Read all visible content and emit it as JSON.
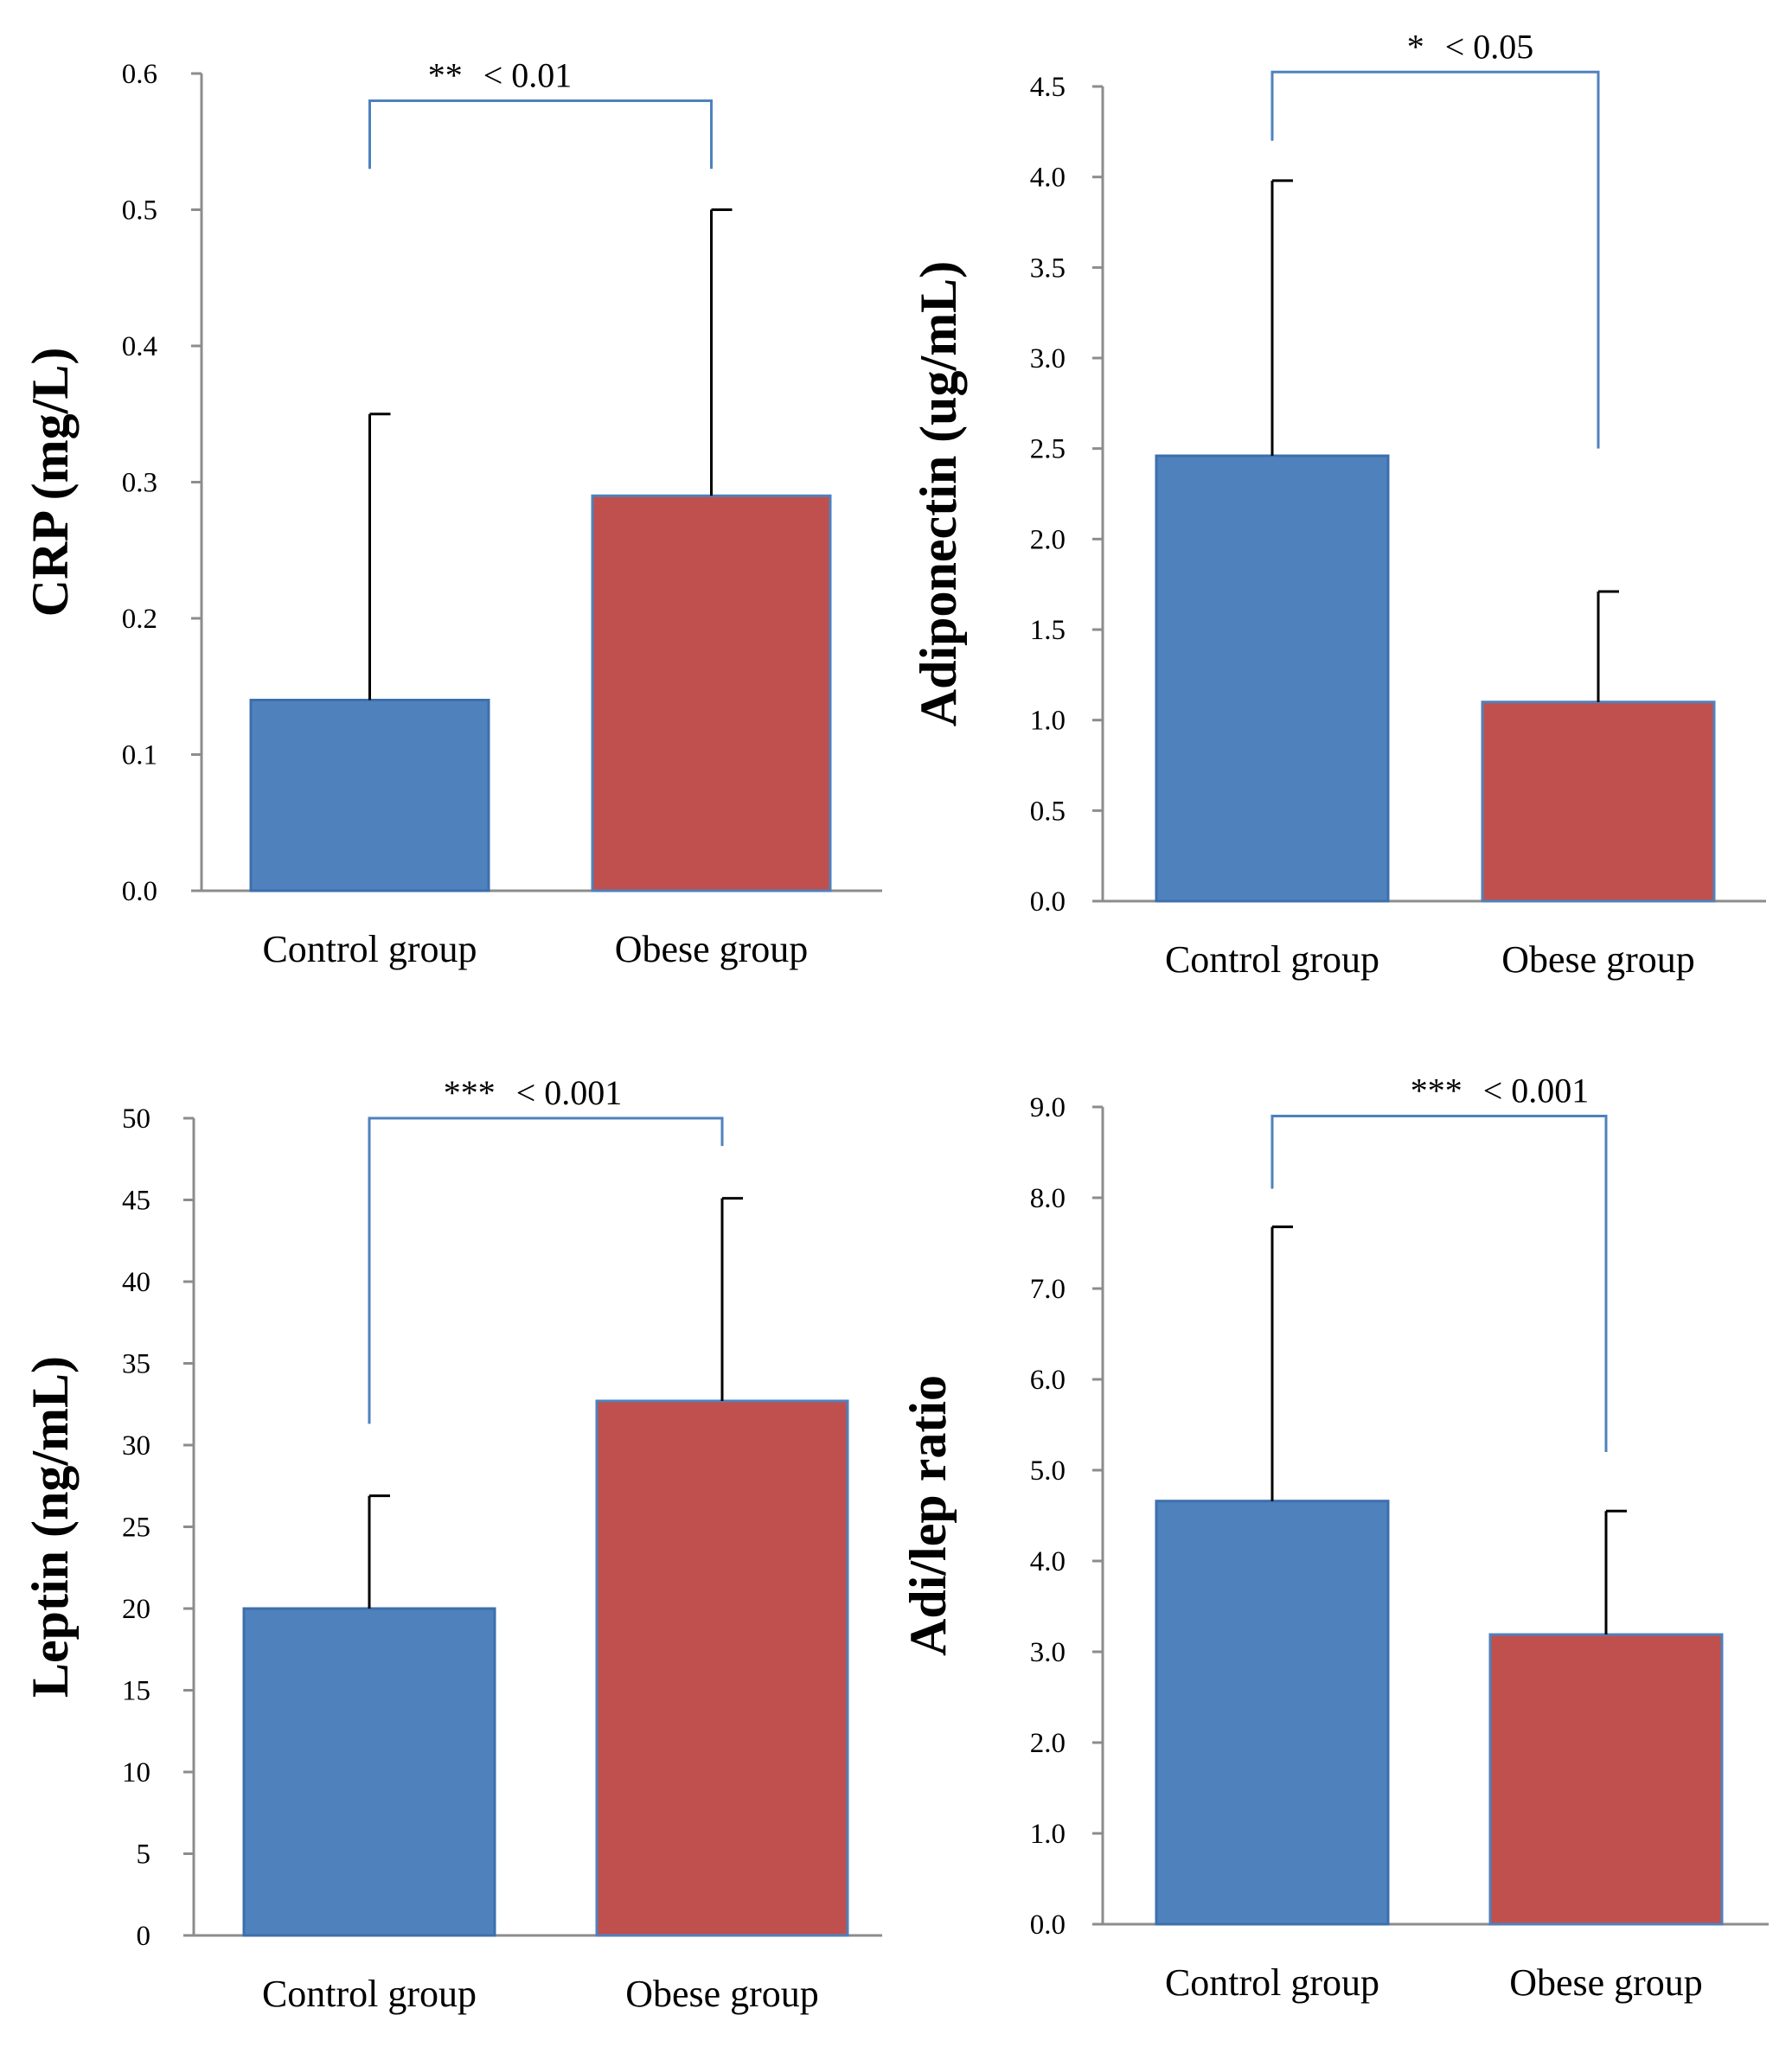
{
  "colors": {
    "control": "#4f81bd",
    "control_edge": "#3d6fad",
    "obese": "#c0504d",
    "obese_edge": "#4f81bd",
    "bracket": "#4f81bd",
    "axis": "#8c8c8c"
  },
  "chart_data": [
    {
      "type": "bar",
      "categories": [
        "Control group",
        "Obese group"
      ],
      "values": [
        0.14,
        0.29
      ],
      "errors": [
        0.21,
        0.21
      ],
      "ylabel": "CRP (mg/L)",
      "ylim": [
        0,
        0.6
      ],
      "yticks": [
        "0.0",
        "0.1",
        "0.2",
        "0.3",
        "0.4",
        "0.5",
        "0.6"
      ],
      "significance": {
        "stars": "**",
        "label": "< 0.01"
      },
      "bracket_levels": [
        0.53,
        0.58,
        0.53
      ]
    },
    {
      "type": "bar",
      "categories": [
        "Control group",
        "Obese group"
      ],
      "values": [
        2.46,
        1.1
      ],
      "errors": [
        1.52,
        0.61
      ],
      "ylabel": "Adiponectin (ug/mL)",
      "ylim": [
        0,
        4.5
      ],
      "yticks": [
        "0.0",
        "0.5",
        "1.0",
        "1.5",
        "2.0",
        "2.5",
        "3.0",
        "3.5",
        "4.0",
        "4.5"
      ],
      "significance": {
        "stars": "*",
        "label": "< 0.05"
      },
      "bracket_levels": [
        4.2,
        4.58,
        2.5
      ]
    },
    {
      "type": "bar",
      "categories": [
        "Control group",
        "Obese group"
      ],
      "values": [
        20,
        32.7
      ],
      "errors": [
        6.9,
        12.4
      ],
      "ylabel": "Leptin (ng/mL)",
      "ylim": [
        0,
        50
      ],
      "yticks": [
        "0",
        "5",
        "10",
        "15",
        "20",
        "25",
        "30",
        "35",
        "40",
        "45",
        "50"
      ],
      "significance": {
        "stars": "***",
        "label": "< 0.001"
      },
      "bracket_levels": [
        31.3,
        50,
        48.3
      ]
    },
    {
      "type": "bar",
      "categories": [
        "Control group",
        "Obese group"
      ],
      "values": [
        4.66,
        3.19
      ],
      "errors": [
        3.02,
        1.36
      ],
      "ylabel": "Adi/lep ratio",
      "ylim": [
        0,
        9
      ],
      "yticks": [
        "0.0",
        "1.0",
        "2.0",
        "3.0",
        "4.0",
        "5.0",
        "6.0",
        "7.0",
        "8.0",
        "9.0"
      ],
      "significance": {
        "stars": "***",
        "label": "< 0.001"
      },
      "bracket_levels": [
        8.1,
        8.9,
        5.2
      ]
    }
  ]
}
